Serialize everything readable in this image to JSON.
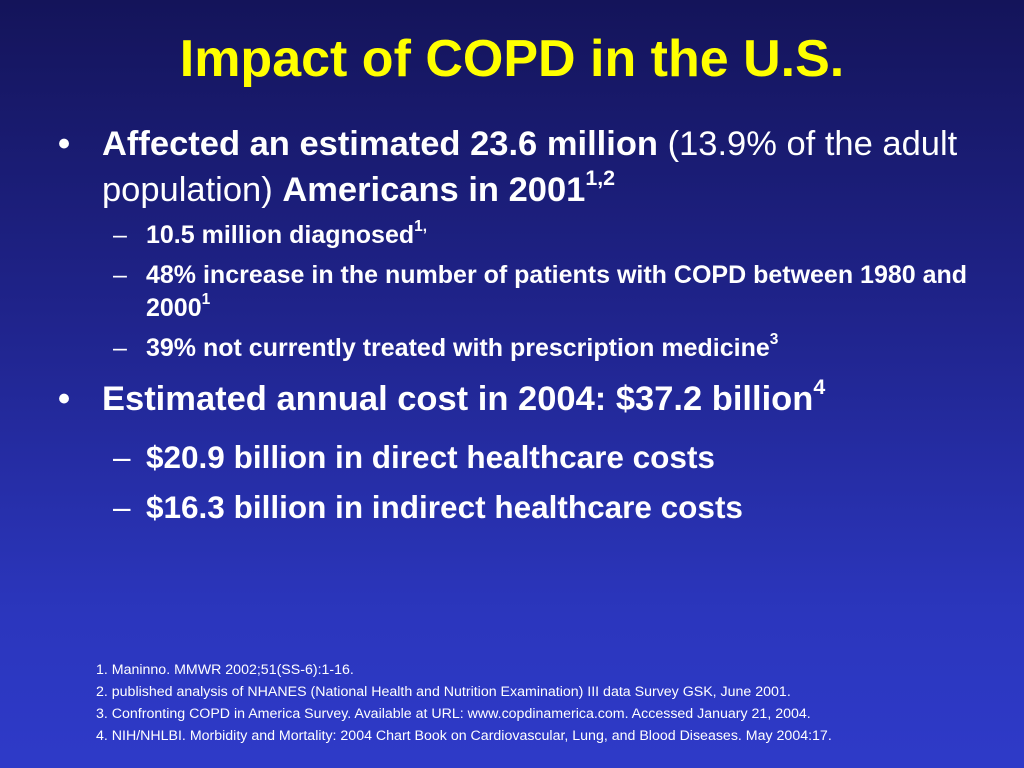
{
  "slide": {
    "title": "Impact of COPD in the U.S."
  },
  "bullets": {
    "b1": {
      "symbol": "•",
      "bold_a": "Affected an estimated 23.6 million",
      "normal": " (13.9% of the adult population) ",
      "bold_b": "Americans in 2001",
      "sup": "1,2"
    },
    "b1_subs": [
      {
        "dash": "–",
        "text": "10.5 million diagnosed",
        "sup": "1,"
      },
      {
        "dash": "–",
        "text": "48% increase in the number of patients with COPD between 1980 and 2000",
        "sup": "1"
      },
      {
        "dash": "–",
        "text": "39% not currently treated with prescription medicine",
        "sup": "3"
      }
    ],
    "b2": {
      "symbol": "•",
      "text": "Estimated annual cost in 2004:  $37.2 billion",
      "sup": "4"
    },
    "b2_subs": [
      {
        "dash": "–",
        "text": "$20.9 billion in direct healthcare costs"
      },
      {
        "dash": "–",
        "text": "$16.3 billion in indirect healthcare costs"
      }
    ]
  },
  "references": [
    "1.  Maninno.  MMWR 2002;51(SS-6):1-16.",
    "2.  published analysis of NHANES (National Health and Nutrition Examination) III data Survey GSK, June 2001.",
    "3.  Confronting COPD in America Survey. Available at URL: www.copdinamerica.com.  Accessed January 21, 2004.",
    "4.  NIH/NHLBI. Morbidity and Mortality: 2004 Chart Book on Cardiovascular, Lung, and Blood Diseases. May 2004:17."
  ],
  "colors": {
    "title": "#ffff00",
    "text": "#ffffff",
    "background_top": "#14145a",
    "background_bottom": "#2e3ac8"
  }
}
